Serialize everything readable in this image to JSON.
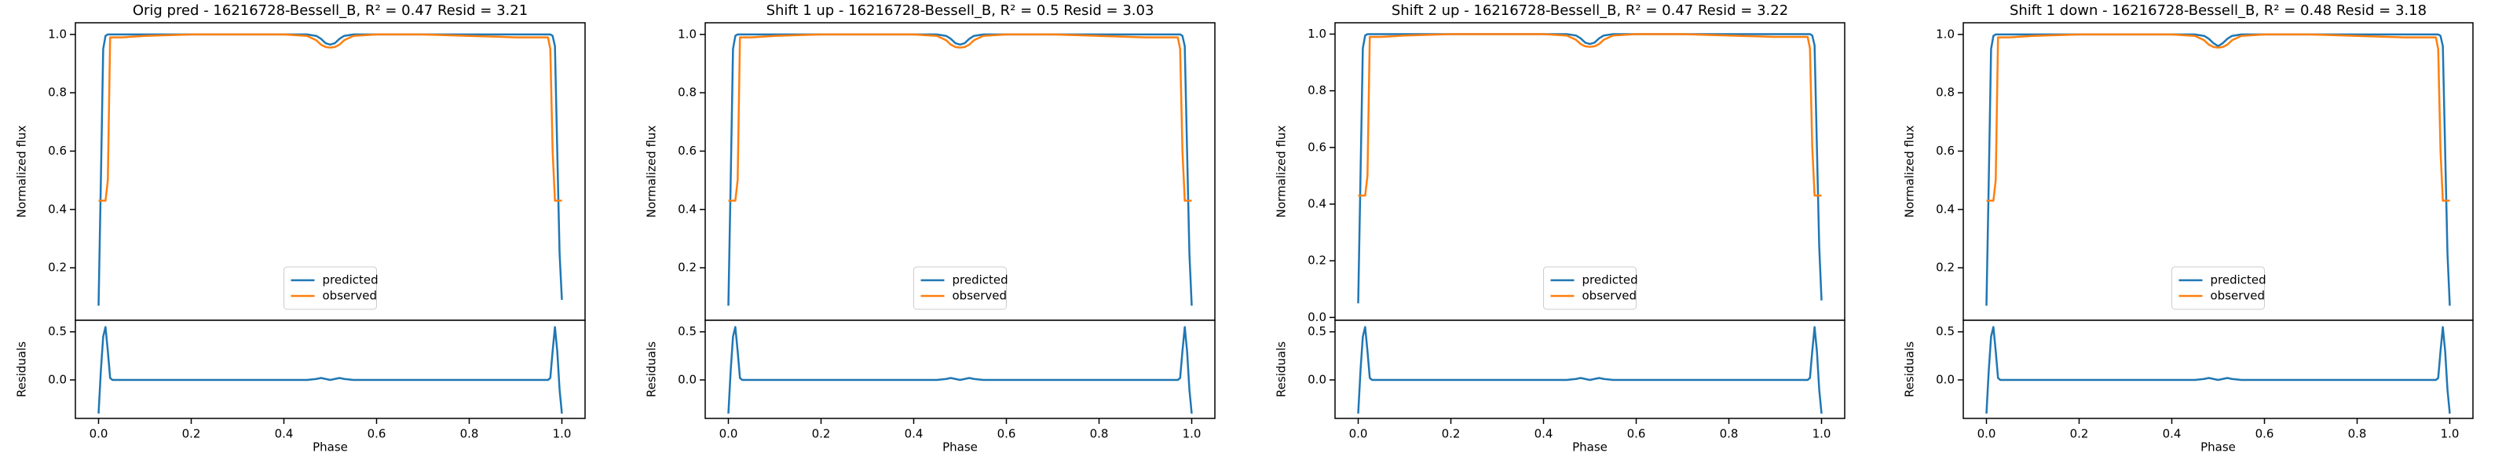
{
  "chart_data": [
    {
      "type": "line",
      "title": "Orig pred - 16216728-Bessell_B, R² = 0.47 Resid = 3.21",
      "ylabel": "Normalized flux",
      "x": [
        0,
        0.005,
        0.01,
        0.015,
        0.02,
        0.025,
        0.03,
        0.05,
        0.1,
        0.2,
        0.3,
        0.4,
        0.45,
        0.47,
        0.48,
        0.49,
        0.5,
        0.51,
        0.52,
        0.53,
        0.55,
        0.6,
        0.7,
        0.8,
        0.9,
        0.95,
        0.97,
        0.975,
        0.98,
        0.985,
        0.99,
        0.995,
        1.0
      ],
      "series": [
        {
          "name": "predicted",
          "color": "#1f77b4",
          "values": [
            0.07,
            0.5,
            0.95,
            0.995,
            1,
            1,
            1,
            1,
            1,
            1,
            1,
            1,
            1,
            0.995,
            0.985,
            0.97,
            0.965,
            0.97,
            0.985,
            0.995,
            1,
            1,
            1,
            1,
            1,
            1,
            1,
            1,
            0.995,
            0.96,
            0.6,
            0.25,
            0.09
          ]
        },
        {
          "name": "observed",
          "color": "#ff7f0e",
          "values": [
            0.43,
            0.43,
            0.43,
            0.43,
            0.5,
            0.99,
            0.99,
            0.99,
            0.995,
            1,
            1,
            1,
            0.995,
            0.98,
            0.965,
            0.957,
            0.955,
            0.957,
            0.965,
            0.98,
            0.995,
            1,
            1,
            0.995,
            0.99,
            0.99,
            0.99,
            0.95,
            0.6,
            0.43,
            0.43,
            0.43,
            0.43
          ]
        }
      ],
      "xlim": [
        -0.05,
        1.05
      ],
      "ylim": [
        0.02,
        1.04
      ],
      "yticks": [
        0.2,
        0.4,
        0.6,
        0.8,
        {
          "value": 1,
          "label": "1.0"
        }
      ],
      "legend": "lower center"
    },
    {
      "type": "line",
      "xlabel": "Phase",
      "ylabel": "Residuals",
      "x": [
        0,
        0.005,
        0.01,
        0.015,
        0.02,
        0.025,
        0.03,
        0.05,
        0.1,
        0.2,
        0.3,
        0.4,
        0.45,
        0.47,
        0.48,
        0.49,
        0.5,
        0.51,
        0.52,
        0.53,
        0.55,
        0.6,
        0.7,
        0.8,
        0.9,
        0.95,
        0.97,
        0.975,
        0.98,
        0.985,
        0.99,
        0.995,
        1.0
      ],
      "series": [
        {
          "color": "#1f77b4",
          "values": [
            -0.35,
            0.1,
            0.45,
            0.55,
            0.3,
            0.02,
            0,
            0,
            0,
            0,
            0,
            0,
            0,
            0.01,
            0.02,
            0.01,
            0,
            0.01,
            0.02,
            0.01,
            0,
            0,
            0,
            0,
            0,
            0,
            0,
            0.02,
            0.3,
            0.55,
            0.3,
            -0.1,
            -0.35
          ]
        }
      ],
      "xlim": [
        -0.05,
        1.05
      ],
      "ylim": [
        -0.4,
        0.62
      ],
      "xticks": [
        {
          "value": 0,
          "label": "0.0"
        },
        0.2,
        0.4,
        0.6,
        0.8,
        {
          "value": 1,
          "label": "1.0"
        }
      ],
      "yticks": [
        {
          "value": 0,
          "label": "0.0"
        },
        0.5
      ]
    },
    {
      "type": "line",
      "title": "Shift 1 up - 16216728-Bessell_B, R² = 0.5 Resid = 3.03",
      "ylabel": "Normalized flux",
      "x": [
        0,
        0.005,
        0.01,
        0.015,
        0.02,
        0.025,
        0.03,
        0.05,
        0.1,
        0.2,
        0.3,
        0.4,
        0.45,
        0.47,
        0.48,
        0.49,
        0.5,
        0.51,
        0.52,
        0.53,
        0.55,
        0.6,
        0.7,
        0.8,
        0.9,
        0.95,
        0.97,
        0.975,
        0.98,
        0.985,
        0.99,
        0.995,
        1.0
      ],
      "series": [
        {
          "name": "predicted",
          "color": "#1f77b4",
          "values": [
            0.07,
            0.5,
            0.95,
            0.995,
            1,
            1,
            1,
            1,
            1,
            1,
            1,
            1,
            1,
            0.995,
            0.985,
            0.97,
            0.965,
            0.97,
            0.985,
            0.995,
            1,
            1,
            1,
            1,
            1,
            1,
            1,
            1,
            0.995,
            0.96,
            0.6,
            0.25,
            0.07
          ]
        },
        {
          "name": "observed",
          "color": "#ff7f0e",
          "values": [
            0.43,
            0.43,
            0.43,
            0.43,
            0.5,
            0.99,
            0.99,
            0.99,
            0.995,
            1,
            1,
            1,
            0.995,
            0.98,
            0.965,
            0.957,
            0.955,
            0.957,
            0.965,
            0.98,
            0.995,
            1,
            1,
            0.995,
            0.99,
            0.99,
            0.99,
            0.95,
            0.6,
            0.43,
            0.43,
            0.43,
            0.43
          ]
        }
      ],
      "xlim": [
        -0.05,
        1.05
      ],
      "ylim": [
        0.02,
        1.04
      ],
      "yticks": [
        0.2,
        0.4,
        0.6,
        0.8,
        {
          "value": 1,
          "label": "1.0"
        }
      ],
      "legend": "lower center"
    },
    {
      "type": "line",
      "xlabel": "Phase",
      "ylabel": "Residuals",
      "x": [
        0,
        0.005,
        0.01,
        0.015,
        0.02,
        0.025,
        0.03,
        0.05,
        0.1,
        0.2,
        0.3,
        0.4,
        0.45,
        0.47,
        0.48,
        0.49,
        0.5,
        0.51,
        0.52,
        0.53,
        0.55,
        0.6,
        0.7,
        0.8,
        0.9,
        0.95,
        0.97,
        0.975,
        0.98,
        0.985,
        0.99,
        0.995,
        1.0
      ],
      "series": [
        {
          "color": "#1f77b4",
          "values": [
            -0.35,
            0.1,
            0.45,
            0.55,
            0.3,
            0.02,
            0,
            0,
            0,
            0,
            0,
            0,
            0,
            0.01,
            0.02,
            0.01,
            0,
            0.01,
            0.02,
            0.01,
            0,
            0,
            0,
            0,
            0,
            0,
            0,
            0.02,
            0.3,
            0.55,
            0.3,
            -0.1,
            -0.35
          ]
        }
      ],
      "xlim": [
        -0.05,
        1.05
      ],
      "ylim": [
        -0.4,
        0.62
      ],
      "xticks": [
        {
          "value": 0,
          "label": "0.0"
        },
        0.2,
        0.4,
        0.6,
        0.8,
        {
          "value": 1,
          "label": "1.0"
        }
      ],
      "yticks": [
        {
          "value": 0,
          "label": "0.0"
        },
        0.5
      ]
    },
    {
      "type": "line",
      "title": "Shift 2 up - 16216728-Bessell_B, R² = 0.47 Resid = 3.22",
      "ylabel": "Normalized flux",
      "x": [
        0,
        0.005,
        0.01,
        0.015,
        0.02,
        0.025,
        0.03,
        0.05,
        0.1,
        0.2,
        0.3,
        0.4,
        0.45,
        0.47,
        0.48,
        0.49,
        0.5,
        0.51,
        0.52,
        0.53,
        0.55,
        0.6,
        0.7,
        0.8,
        0.9,
        0.95,
        0.97,
        0.975,
        0.98,
        0.985,
        0.99,
        0.995,
        1.0
      ],
      "series": [
        {
          "name": "predicted",
          "color": "#1f77b4",
          "values": [
            0.05,
            0.5,
            0.95,
            0.995,
            1,
            1,
            1,
            1,
            1,
            1,
            1,
            1,
            1,
            0.995,
            0.985,
            0.97,
            0.965,
            0.97,
            0.985,
            0.995,
            1,
            1,
            1,
            1,
            1,
            1,
            1,
            1,
            0.995,
            0.96,
            0.6,
            0.25,
            0.06
          ]
        },
        {
          "name": "observed",
          "color": "#ff7f0e",
          "values": [
            0.43,
            0.43,
            0.43,
            0.43,
            0.5,
            0.99,
            0.99,
            0.99,
            0.995,
            1,
            1,
            1,
            0.995,
            0.98,
            0.965,
            0.957,
            0.955,
            0.957,
            0.965,
            0.98,
            0.995,
            1,
            1,
            0.995,
            0.99,
            0.99,
            0.99,
            0.95,
            0.6,
            0.43,
            0.43,
            0.43,
            0.43
          ]
        }
      ],
      "xlim": [
        -0.05,
        1.05
      ],
      "ylim": [
        -0.01,
        1.04
      ],
      "yticks": [
        {
          "value": 0,
          "label": "0.0"
        },
        0.2,
        0.4,
        0.6,
        0.8,
        {
          "value": 1,
          "label": "1.0"
        }
      ],
      "legend": "lower center"
    },
    {
      "type": "line",
      "xlabel": "Phase",
      "ylabel": "Residuals",
      "x": [
        0,
        0.005,
        0.01,
        0.015,
        0.02,
        0.025,
        0.03,
        0.05,
        0.1,
        0.2,
        0.3,
        0.4,
        0.45,
        0.47,
        0.48,
        0.49,
        0.5,
        0.51,
        0.52,
        0.53,
        0.55,
        0.6,
        0.7,
        0.8,
        0.9,
        0.95,
        0.97,
        0.975,
        0.98,
        0.985,
        0.99,
        0.995,
        1.0
      ],
      "series": [
        {
          "color": "#1f77b4",
          "values": [
            -0.35,
            0.1,
            0.45,
            0.55,
            0.3,
            0.02,
            0,
            0,
            0,
            0,
            0,
            0,
            0,
            0.01,
            0.02,
            0.01,
            0,
            0.01,
            0.02,
            0.01,
            0,
            0,
            0,
            0,
            0,
            0,
            0,
            0.02,
            0.3,
            0.55,
            0.3,
            -0.1,
            -0.35
          ]
        }
      ],
      "xlim": [
        -0.05,
        1.05
      ],
      "ylim": [
        -0.4,
        0.62
      ],
      "xticks": [
        {
          "value": 0,
          "label": "0.0"
        },
        0.2,
        0.4,
        0.6,
        0.8,
        {
          "value": 1,
          "label": "1.0"
        }
      ],
      "yticks": [
        {
          "value": 0,
          "label": "0.0"
        },
        0.5
      ]
    },
    {
      "type": "line",
      "title": "Shift 1 down - 16216728-Bessell_B, R² = 0.48 Resid = 3.18",
      "ylabel": "Normalized flux",
      "x": [
        0,
        0.005,
        0.01,
        0.015,
        0.02,
        0.025,
        0.03,
        0.05,
        0.1,
        0.2,
        0.3,
        0.4,
        0.45,
        0.47,
        0.48,
        0.49,
        0.5,
        0.51,
        0.52,
        0.53,
        0.55,
        0.6,
        0.7,
        0.8,
        0.9,
        0.95,
        0.97,
        0.975,
        0.98,
        0.985,
        0.99,
        0.995,
        1.0
      ],
      "series": [
        {
          "name": "predicted",
          "color": "#1f77b4",
          "values": [
            0.07,
            0.5,
            0.95,
            0.995,
            1,
            1,
            1,
            1,
            1,
            1,
            1,
            1,
            1,
            0.995,
            0.985,
            0.97,
            0.96,
            0.97,
            0.985,
            0.995,
            1,
            1,
            1,
            1,
            1,
            1,
            1,
            1,
            0.995,
            0.96,
            0.6,
            0.25,
            0.07
          ]
        },
        {
          "name": "observed",
          "color": "#ff7f0e",
          "values": [
            0.43,
            0.43,
            0.43,
            0.43,
            0.5,
            0.99,
            0.99,
            0.99,
            0.995,
            1,
            1,
            1,
            0.995,
            0.98,
            0.965,
            0.957,
            0.955,
            0.957,
            0.965,
            0.98,
            0.995,
            1,
            1,
            0.995,
            0.99,
            0.99,
            0.99,
            0.95,
            0.6,
            0.43,
            0.43,
            0.43,
            0.43
          ]
        }
      ],
      "xlim": [
        -0.05,
        1.05
      ],
      "ylim": [
        0.02,
        1.04
      ],
      "yticks": [
        0.2,
        0.4,
        0.6,
        0.8,
        {
          "value": 1,
          "label": "1.0"
        }
      ],
      "legend": "lower center"
    },
    {
      "type": "line",
      "xlabel": "Phase",
      "ylabel": "Residuals",
      "x": [
        0,
        0.005,
        0.01,
        0.015,
        0.02,
        0.025,
        0.03,
        0.05,
        0.1,
        0.2,
        0.3,
        0.4,
        0.45,
        0.47,
        0.48,
        0.49,
        0.5,
        0.51,
        0.52,
        0.53,
        0.55,
        0.6,
        0.7,
        0.8,
        0.9,
        0.95,
        0.97,
        0.975,
        0.98,
        0.985,
        0.99,
        0.995,
        1.0
      ],
      "series": [
        {
          "color": "#1f77b4",
          "values": [
            -0.35,
            0.1,
            0.45,
            0.55,
            0.3,
            0.02,
            0,
            0,
            0,
            0,
            0,
            0,
            0,
            0.01,
            0.02,
            0.01,
            0,
            0.01,
            0.02,
            0.01,
            0,
            0,
            0,
            0,
            0,
            0,
            0,
            0.02,
            0.3,
            0.55,
            0.3,
            -0.1,
            -0.35
          ]
        }
      ],
      "xlim": [
        -0.05,
        1.05
      ],
      "ylim": [
        -0.4,
        0.62
      ],
      "xticks": [
        {
          "value": 0,
          "label": "0.0"
        },
        0.2,
        0.4,
        0.6,
        0.8,
        {
          "value": 1,
          "label": "1.0"
        }
      ],
      "yticks": [
        {
          "value": 0,
          "label": "0.0"
        },
        0.5
      ]
    }
  ]
}
